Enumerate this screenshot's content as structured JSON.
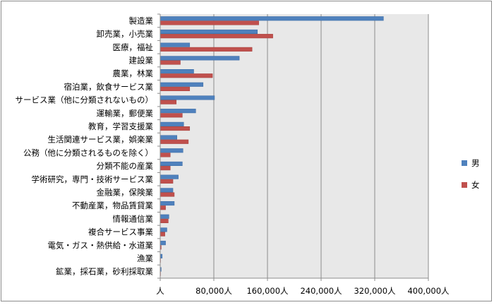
{
  "chart_data": {
    "type": "bar",
    "orientation": "horizontal",
    "categories": [
      "製造業",
      "卸売業，小売業",
      "医療，福祉",
      "建設業",
      "農業，林業",
      "宿泊業，飲食サービス業",
      "サービス業（他に分類されないもの）",
      "運輸業，郵便業",
      "教育，学習支援業",
      "生活関連サービス業，娯楽業",
      "公務（他に分類されるものを除く）",
      "分類不能の産業",
      "学術研究，専門・技術サービス業",
      "金融業，保険業",
      "不動産業，物品賃貸業",
      "情報通信業",
      "複合サービス事業",
      "電気・ガス・熱供給・水道業",
      "漁業",
      "鉱業，採石業，砂利採取業"
    ],
    "series": [
      {
        "name": "男",
        "color": "#4f81bd",
        "values": [
          333000,
          145000,
          44000,
          118000,
          50000,
          64000,
          81000,
          53000,
          35000,
          25000,
          34000,
          33000,
          27000,
          19000,
          21000,
          13000,
          10000,
          8000,
          3000,
          1500
        ]
      },
      {
        "name": "女",
        "color": "#c0504d",
        "values": [
          147000,
          168000,
          137000,
          30000,
          78000,
          44000,
          24000,
          33000,
          44000,
          42000,
          15000,
          15000,
          19000,
          21000,
          8000,
          12000,
          7000,
          1500,
          500,
          200
        ]
      }
    ],
    "x_ticks": [
      "人",
      "80,000人",
      "160,000人",
      "240,000人",
      "320,000人",
      "400,000人"
    ],
    "xlim": [
      0,
      400000
    ],
    "grid": true,
    "plot_background": "#e8e8e8",
    "legend": "right"
  }
}
